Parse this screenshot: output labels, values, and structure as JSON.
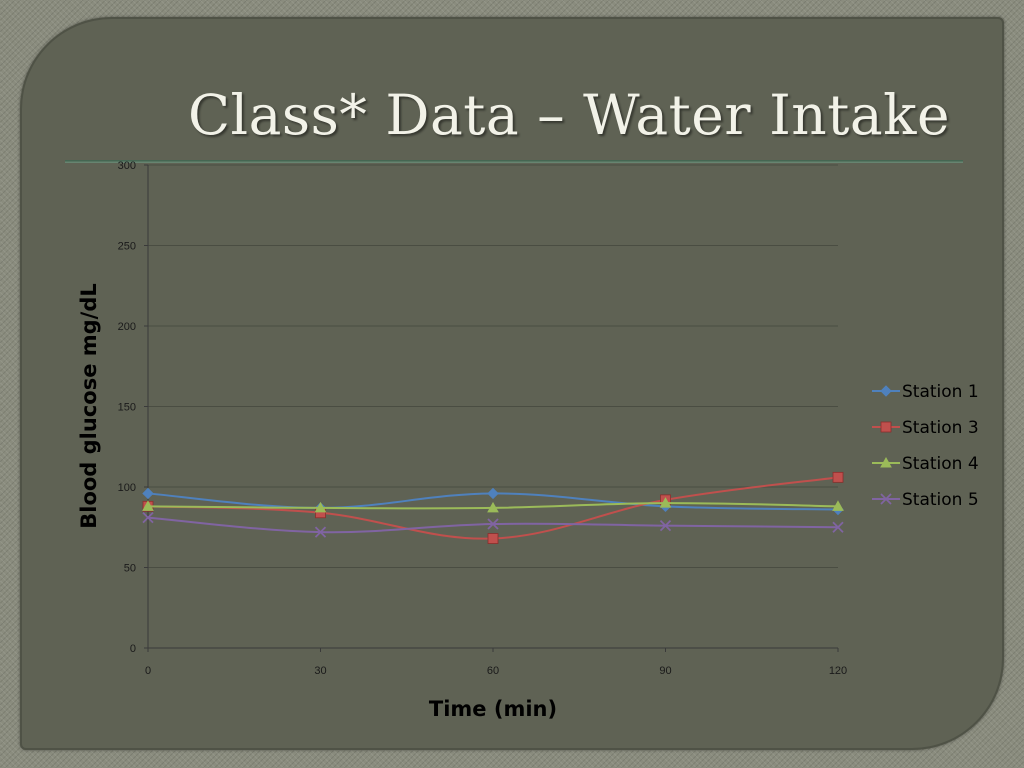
{
  "slide": {
    "title": "Class* Data – Water Intake"
  },
  "chart_data": {
    "type": "line",
    "x": [
      0,
      30,
      60,
      90,
      120
    ],
    "xlabel": "Time (min)",
    "ylabel": "Blood glucose mg/dL",
    "xlim": [
      0,
      120
    ],
    "ylim": [
      0,
      300
    ],
    "x_ticks": [
      "0",
      "30",
      "60",
      "90",
      "120"
    ],
    "y_ticks": [
      "0",
      "50",
      "100",
      "150",
      "200",
      "250",
      "300"
    ],
    "grid": "horizontal",
    "legend_position": "right",
    "series": [
      {
        "name": "Station 1",
        "color": "#4f81bd",
        "marker": "diamond",
        "values": [
          96,
          87,
          96,
          88,
          86
        ]
      },
      {
        "name": "Station 3",
        "color": "#c0504d",
        "marker": "square",
        "values": [
          88,
          84,
          68,
          92,
          106
        ]
      },
      {
        "name": "Station 4",
        "color": "#9bbb59",
        "marker": "triangle",
        "values": [
          88,
          87,
          87,
          90,
          88
        ]
      },
      {
        "name": "Station 5",
        "color": "#8064a2",
        "marker": "x",
        "values": [
          81,
          72,
          77,
          76,
          75
        ]
      }
    ]
  }
}
